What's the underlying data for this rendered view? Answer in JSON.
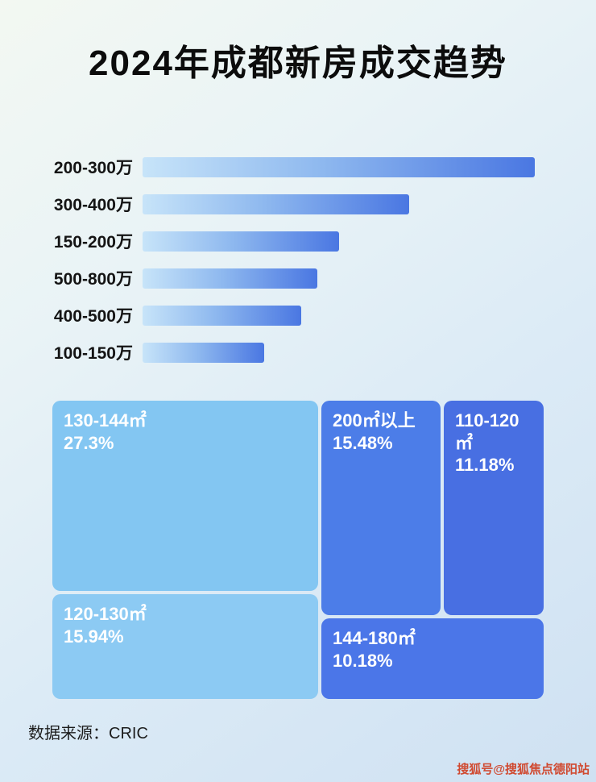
{
  "page": {
    "title": "2024年成都新房成交趋势",
    "source": "数据来源：CRIC",
    "watermark": "搜狐号@搜狐焦点德阳站"
  },
  "colors": {
    "bar_gradient_start": "#c7e4f9",
    "bar_gradient_end": "#4a77e2",
    "treemap_light_blue": "#83c6f2",
    "treemap_dark_blue": "#4c7de8",
    "background_top": "#f3f8f2",
    "background_bottom": "#cfe1f2",
    "watermark_red": "#d04a31"
  },
  "chart_data": [
    {
      "type": "bar",
      "orientation": "horizontal",
      "title": "2024年成都新房成交趋势",
      "categories": [
        "200-300万",
        "300-400万",
        "150-200万",
        "500-800万",
        "400-500万",
        "100-150万"
      ],
      "values_relative_pct": [
        100,
        68,
        50,
        44.5,
        40.5,
        31
      ],
      "note": "bar lengths relative to longest bar (200-300万 = 100); absolute values not labeled in image",
      "xlabel": "",
      "ylabel": "",
      "grid": false,
      "legend": false
    },
    {
      "type": "treemap",
      "title": "",
      "blocks": [
        {
          "label": "130-144㎡",
          "value": "27.3%",
          "value_num": 27.3,
          "tone": "light"
        },
        {
          "label": "200㎡以上",
          "value": "15.48%",
          "value_num": 15.48,
          "tone": "dark"
        },
        {
          "label": "110-120㎡",
          "value": "11.18%",
          "value_num": 11.18,
          "tone": "dark"
        },
        {
          "label": "120-130㎡",
          "value": "15.94%",
          "value_num": 15.94,
          "tone": "light"
        },
        {
          "label": "144-180㎡",
          "value": "10.18%",
          "value_num": 10.18,
          "tone": "dark"
        }
      ]
    }
  ]
}
